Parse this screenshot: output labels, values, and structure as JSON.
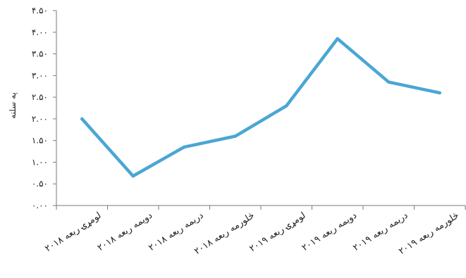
{
  "chart_data": {
    "type": "line",
    "ylabel": "په سلنه",
    "y_ticks": [
      "۰.۰۰",
      "۰.۵۰",
      "۱.۰۰",
      "۱.۵۰",
      "۲.۰۰",
      "۲.۵۰",
      "۳.۰۰",
      "۳.۵۰",
      "۴.۰۰",
      "۴.۵۰"
    ],
    "ylim": [
      0,
      4.5
    ],
    "grid": false,
    "categories": [
      "۲۰۱۸ لومړۍ ربعه",
      "۲۰۱۸ دویمه ربعه",
      "۲۰۱۸ دریمه ربعه",
      "۲۰۱۸ څلورمه ربعه",
      "۲۰۱۹ لومړۍ ربعه",
      "۲۰۱۹ دویمه ربعه",
      "۲۰۱۹ دریمه ربعه",
      "۲۰۱۹ څلورمه ربعه"
    ],
    "series": [
      {
        "values": [
          2.0,
          0.68,
          1.35,
          1.6,
          2.3,
          3.85,
          2.85,
          2.6
        ]
      }
    ],
    "line_color": "#4aa6d4"
  }
}
